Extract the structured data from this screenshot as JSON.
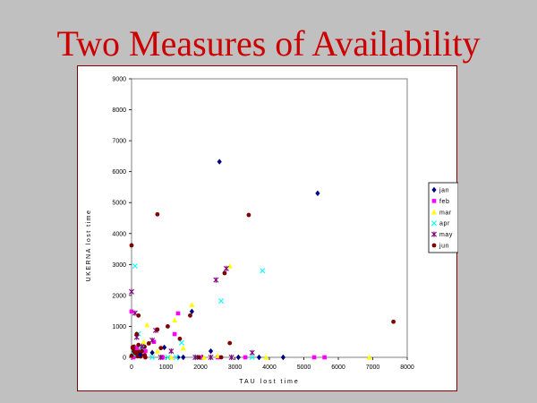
{
  "slide": {
    "title": "Two Measures of Availability"
  },
  "chart_data": {
    "type": "scatter",
    "title": "",
    "xlabel": "TAU lost time",
    "ylabel": "UKERNA lost time",
    "xlim": [
      0,
      8000
    ],
    "ylim": [
      0,
      9000
    ],
    "x_ticks": [
      "0",
      "1000",
      "2000",
      "3000",
      "4000",
      "5000",
      "6000",
      "7000",
      "8000"
    ],
    "y_ticks": [
      "0",
      "1000",
      "2000",
      "3000",
      "4000",
      "5000",
      "6000",
      "7000",
      "8000",
      "9000"
    ],
    "grid": false,
    "legend_position": "right",
    "series": [
      {
        "name": "jan",
        "marker": "diamond",
        "color": "#000080",
        "points": [
          [
            2550,
            6320
          ],
          [
            5400,
            5300
          ],
          [
            1750,
            1480
          ],
          [
            2300,
            200
          ],
          [
            3100,
            0
          ],
          [
            4400,
            0
          ],
          [
            950,
            320
          ],
          [
            1500,
            0
          ],
          [
            2050,
            0
          ],
          [
            600,
            150
          ],
          [
            250,
            80
          ],
          [
            1350,
            0
          ],
          [
            3700,
            0
          ]
        ]
      },
      {
        "name": "feb",
        "marker": "square",
        "color": "#ff00ff",
        "points": [
          [
            0,
            1480
          ],
          [
            1350,
            1420
          ],
          [
            1250,
            750
          ],
          [
            650,
            500
          ],
          [
            5300,
            0
          ],
          [
            5600,
            0
          ],
          [
            2500,
            0
          ],
          [
            3300,
            0
          ],
          [
            150,
            300
          ],
          [
            900,
            0
          ],
          [
            400,
            200
          ],
          [
            2000,
            0
          ],
          [
            50,
            0
          ]
        ]
      },
      {
        "name": "mar",
        "marker": "triangle",
        "color": "#ffff00",
        "points": [
          [
            2850,
            2950
          ],
          [
            1750,
            1700
          ],
          [
            1250,
            1200
          ],
          [
            450,
            1050
          ],
          [
            6900,
            0
          ],
          [
            1500,
            300
          ],
          [
            350,
            500
          ],
          [
            3900,
            0
          ],
          [
            1150,
            0
          ],
          [
            750,
            200
          ],
          [
            2500,
            50
          ],
          [
            2100,
            0
          ]
        ]
      },
      {
        "name": "apr",
        "marker": "x",
        "color": "#00ffff",
        "points": [
          [
            100,
            2950
          ],
          [
            3800,
            2800
          ],
          [
            2600,
            1820
          ],
          [
            1450,
            470
          ],
          [
            200,
            760
          ],
          [
            1050,
            0
          ],
          [
            3500,
            0
          ],
          [
            600,
            0
          ],
          [
            1900,
            0
          ],
          [
            300,
            300
          ],
          [
            50,
            100
          ],
          [
            1300,
            0
          ]
        ]
      },
      {
        "name": "may",
        "marker": "star",
        "color": "#800080",
        "points": [
          [
            2750,
            2870
          ],
          [
            2450,
            2500
          ],
          [
            0,
            2120
          ],
          [
            100,
            1430
          ],
          [
            700,
            870
          ],
          [
            3500,
            150
          ],
          [
            600,
            550
          ],
          [
            300,
            350
          ],
          [
            1150,
            200
          ],
          [
            2900,
            0
          ],
          [
            2300,
            0
          ],
          [
            1850,
            0
          ],
          [
            150,
            650
          ],
          [
            850,
            0
          ]
        ]
      },
      {
        "name": "jun",
        "marker": "circle",
        "color": "#800000",
        "points": [
          [
            750,
            4620
          ],
          [
            3400,
            4600
          ],
          [
            0,
            3620
          ],
          [
            2700,
            2720
          ],
          [
            7600,
            1150
          ],
          [
            1700,
            1350
          ],
          [
            200,
            1350
          ],
          [
            1050,
            1000
          ],
          [
            750,
            900
          ],
          [
            500,
            450
          ],
          [
            2850,
            460
          ],
          [
            400,
            0
          ],
          [
            1950,
            0
          ],
          [
            2600,
            0
          ],
          [
            300,
            200
          ],
          [
            850,
            300
          ],
          [
            150,
            750
          ],
          [
            1400,
            600
          ],
          [
            50,
            300
          ],
          [
            100,
            150
          ],
          [
            0,
            50
          ],
          [
            200,
            400
          ]
        ]
      }
    ],
    "dense_cluster": {
      "x_range": [
        0,
        400
      ],
      "y_range": [
        0,
        350
      ],
      "series": "jun"
    }
  }
}
